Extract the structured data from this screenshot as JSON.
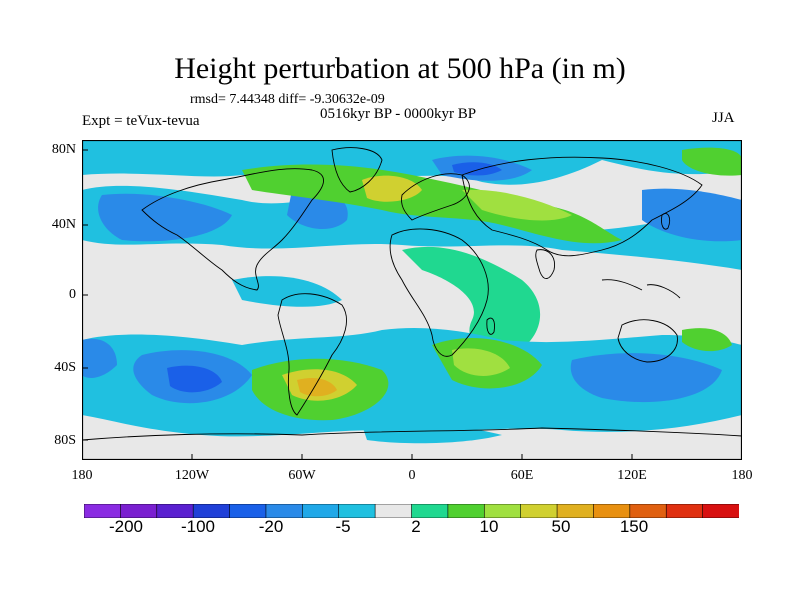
{
  "header": {
    "title": "Height perturbation at 500 hPa (in m)",
    "stats": "rmsd= 7.44348  diff= -9.30632e-09",
    "expt": "Expt = teVux-tevua",
    "period": "0516kyr BP - 0000kyr BP",
    "season": "JJA"
  },
  "axes": {
    "y_ticks": [
      "80N",
      "40N",
      "0",
      "40S",
      "80S"
    ],
    "x_ticks": [
      "180",
      "120W",
      "60W",
      "0",
      "60E",
      "120E",
      "180"
    ]
  },
  "colorbar": {
    "colors": [
      "#8a2be2",
      "#7a1fd0",
      "#5a20d0",
      "#2040d8",
      "#1a60e8",
      "#2a8ae8",
      "#20a8e8",
      "#20c0e0",
      "#e8e8e8",
      "#20d890",
      "#50d030",
      "#a0e040",
      "#d0d030",
      "#e0b020",
      "#e89010",
      "#e06010",
      "#e03010",
      "#d81010"
    ],
    "labels": [
      "-200",
      "-100",
      "-20",
      "-5",
      "2",
      "10",
      "50",
      "150"
    ]
  },
  "palette": {
    "background": "#e8e8e8",
    "light_blue": "#20c0e0",
    "blue": "#2a8ae8",
    "dark_blue": "#1a60e8",
    "teal_green": "#20d890",
    "green": "#50d030",
    "yellow_green": "#a0e040",
    "yellow": "#d0d030",
    "orange": "#e0b020"
  }
}
